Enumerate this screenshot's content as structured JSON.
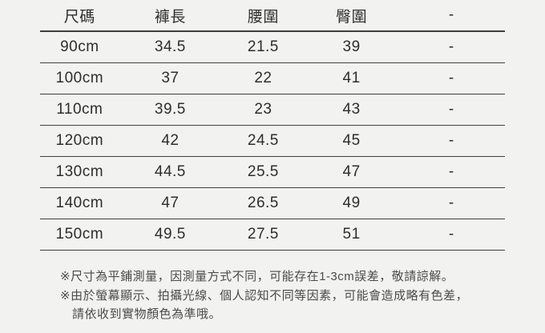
{
  "colors": {
    "background": "#f2f2f1",
    "text": "#2d2d2d",
    "line": "#3f3f3f",
    "note_text": "#4b4b4b"
  },
  "size_chart": {
    "columns": [
      "尺碼",
      "褲長",
      "腰圍",
      "臀圍",
      "-"
    ],
    "rows": [
      [
        "90cm",
        "34.5",
        "21.5",
        "39",
        "-"
      ],
      [
        "100cm",
        "37",
        "22",
        "41",
        "-"
      ],
      [
        "110cm",
        "39.5",
        "23",
        "43",
        "-"
      ],
      [
        "120cm",
        "42",
        "24.5",
        "45",
        "-"
      ],
      [
        "130cm",
        "44.5",
        "25.5",
        "47",
        "-"
      ],
      [
        "140cm",
        "47",
        "26.5",
        "49",
        "-"
      ],
      [
        "150cm",
        "49.5",
        "27.5",
        "51",
        "-"
      ]
    ]
  },
  "notes": {
    "line1": "※尺寸為平鋪測量，因測量方式不同，可能存在1-3cm誤差，敬請諒解。",
    "line2": "※由於螢幕顯示、拍攝光線、個人認知不同等因素，可能會造成略有色差，",
    "line3": "請依收到實物顏色為準哦。"
  }
}
